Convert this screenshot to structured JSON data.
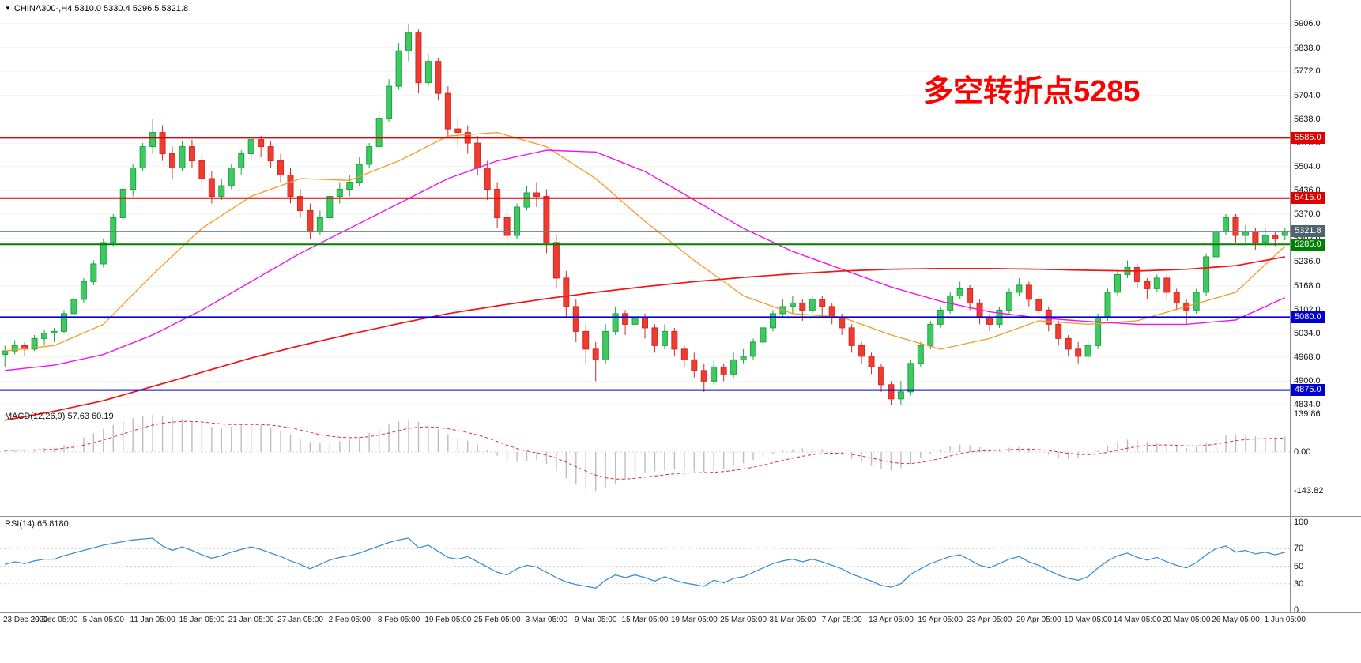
{
  "header": {
    "symbol": "CHINA300-",
    "timeframe": "H4",
    "open": "5310.0",
    "high": "5330.4",
    "low": "5296.5",
    "close": "5321.8",
    "title": "CHINA300-,H4 5310.0 5330.4 5296.5 5321.8"
  },
  "icons": {
    "collapse_triangle": "▼"
  },
  "annotation": {
    "text": "多空转折点5285"
  },
  "colors": {
    "up": "#1fa33e",
    "up_fill": "#3ec962",
    "down": "#cf2b25",
    "down_fill": "#ef3b30",
    "macd_hist": "#bdbdbd",
    "macd_signal": "#e03030",
    "rsi": "#3d8fd4",
    "grid": "#f2f2f2",
    "panel_border": "#8c8c8c",
    "current_line": "#6e7f8c",
    "annotation": "#ff0000"
  },
  "levels": [
    {
      "value": 5585.0,
      "label": "5585.0",
      "color": "#e00000"
    },
    {
      "value": 5415.0,
      "label": "5415.0",
      "color": "#e00000"
    },
    {
      "value": 5285.0,
      "label": "5285.0",
      "color": "#008000"
    },
    {
      "value": 5080.0,
      "label": "5080.0",
      "color": "#0000d0"
    },
    {
      "value": 4875.0,
      "label": "4875.0",
      "color": "#0000d0"
    }
  ],
  "current_price": {
    "value": 5321.8,
    "label": "5321.8",
    "badge_color": "#50626f"
  },
  "chart_data": {
    "type": "candlestick",
    "symbol": "CHINA300-",
    "timeframe": "H4",
    "price_axis": {
      "min": 4834.0,
      "max": 5906.0,
      "ticks": [
        5906.0,
        5838.0,
        5772.0,
        5704.0,
        5638.0,
        5570.0,
        5504.0,
        5436.0,
        5370.0,
        5302.0,
        5236.0,
        5168.0,
        5102.0,
        5034.0,
        4968.0,
        4900.0,
        4834.0
      ]
    },
    "x_labels": [
      "23 Dec 2020",
      "29 Dec 05:00",
      "5 Jan 05:00",
      "11 Jan 05:00",
      "15 Jan 05:00",
      "21 Jan 05:00",
      "27 Jan 05:00",
      "2 Feb 05:00",
      "8 Feb 05:00",
      "19 Feb 05:00",
      "25 Feb 05:00",
      "3 Mar 05:00",
      "9 Mar 05:00",
      "15 Mar 05:00",
      "19 Mar 05:00",
      "25 Mar 05:00",
      "31 Mar 05:00",
      "7 Apr 05:00",
      "13 Apr 05:00",
      "19 Apr 05:00",
      "23 Apr 05:00",
      "29 Apr 05:00",
      "10 May 05:00",
      "14 May 05:00",
      "20 May 05:00",
      "26 May 05:00",
      "1 Jun 05:00"
    ],
    "bars_per_label": 5,
    "candles": [
      [
        4975,
        5000,
        4940,
        4985
      ],
      [
        4985,
        5015,
        4975,
        5000
      ],
      [
        5000,
        5010,
        4970,
        4990
      ],
      [
        4990,
        5030,
        4985,
        5020
      ],
      [
        5020,
        5045,
        5000,
        5035
      ],
      [
        5035,
        5050,
        5010,
        5040
      ],
      [
        5040,
        5100,
        5035,
        5090
      ],
      [
        5090,
        5140,
        5080,
        5130
      ],
      [
        5130,
        5190,
        5120,
        5180
      ],
      [
        5180,
        5240,
        5170,
        5230
      ],
      [
        5230,
        5300,
        5220,
        5290
      ],
      [
        5290,
        5370,
        5280,
        5360
      ],
      [
        5360,
        5450,
        5350,
        5440
      ],
      [
        5440,
        5510,
        5420,
        5500
      ],
      [
        5500,
        5570,
        5490,
        5560
      ],
      [
        5560,
        5638,
        5540,
        5600
      ],
      [
        5600,
        5620,
        5520,
        5540
      ],
      [
        5540,
        5560,
        5470,
        5500
      ],
      [
        5500,
        5575,
        5490,
        5560
      ],
      [
        5560,
        5580,
        5500,
        5520
      ],
      [
        5520,
        5540,
        5440,
        5470
      ],
      [
        5470,
        5490,
        5400,
        5420
      ],
      [
        5420,
        5470,
        5410,
        5450
      ],
      [
        5450,
        5510,
        5440,
        5500
      ],
      [
        5500,
        5550,
        5480,
        5540
      ],
      [
        5540,
        5585,
        5520,
        5580
      ],
      [
        5580,
        5590,
        5530,
        5560
      ],
      [
        5560,
        5575,
        5500,
        5520
      ],
      [
        5520,
        5540,
        5460,
        5480
      ],
      [
        5480,
        5500,
        5400,
        5420
      ],
      [
        5420,
        5440,
        5360,
        5380
      ],
      [
        5380,
        5400,
        5300,
        5320
      ],
      [
        5320,
        5380,
        5310,
        5360
      ],
      [
        5360,
        5430,
        5350,
        5420
      ],
      [
        5420,
        5460,
        5400,
        5440
      ],
      [
        5440,
        5480,
        5420,
        5460
      ],
      [
        5460,
        5530,
        5450,
        5510
      ],
      [
        5510,
        5570,
        5500,
        5560
      ],
      [
        5560,
        5660,
        5550,
        5640
      ],
      [
        5640,
        5750,
        5630,
        5730
      ],
      [
        5730,
        5850,
        5720,
        5830
      ],
      [
        5830,
        5906,
        5800,
        5880
      ],
      [
        5880,
        5890,
        5710,
        5740
      ],
      [
        5740,
        5820,
        5730,
        5800
      ],
      [
        5800,
        5810,
        5690,
        5710
      ],
      [
        5710,
        5730,
        5590,
        5610
      ],
      [
        5610,
        5640,
        5560,
        5600
      ],
      [
        5600,
        5620,
        5540,
        5570
      ],
      [
        5570,
        5590,
        5480,
        5500
      ],
      [
        5500,
        5520,
        5410,
        5440
      ],
      [
        5440,
        5460,
        5330,
        5360
      ],
      [
        5360,
        5380,
        5290,
        5310
      ],
      [
        5310,
        5400,
        5300,
        5390
      ],
      [
        5390,
        5450,
        5380,
        5430
      ],
      [
        5430,
        5460,
        5390,
        5420
      ],
      [
        5420,
        5440,
        5260,
        5290
      ],
      [
        5290,
        5310,
        5160,
        5190
      ],
      [
        5190,
        5210,
        5080,
        5110
      ],
      [
        5110,
        5130,
        5010,
        5040
      ],
      [
        5040,
        5060,
        4950,
        4990
      ],
      [
        4990,
        5010,
        4900,
        4960
      ],
      [
        4960,
        5060,
        4950,
        5040
      ],
      [
        5040,
        5110,
        5030,
        5090
      ],
      [
        5090,
        5100,
        5030,
        5060
      ],
      [
        5060,
        5110,
        5050,
        5080
      ],
      [
        5080,
        5090,
        5020,
        5050
      ],
      [
        5050,
        5060,
        4980,
        5000
      ],
      [
        5000,
        5060,
        4990,
        5040
      ],
      [
        5040,
        5050,
        4970,
        4990
      ],
      [
        4990,
        5000,
        4940,
        4960
      ],
      [
        4960,
        4980,
        4910,
        4930
      ],
      [
        4930,
        4950,
        4870,
        4900
      ],
      [
        4900,
        4960,
        4890,
        4940
      ],
      [
        4940,
        4950,
        4900,
        4920
      ],
      [
        4920,
        4980,
        4910,
        4960
      ],
      [
        4960,
        4990,
        4950,
        4970
      ],
      [
        4970,
        5020,
        4960,
        5010
      ],
      [
        5010,
        5060,
        5000,
        5050
      ],
      [
        5050,
        5100,
        5040,
        5090
      ],
      [
        5090,
        5130,
        5080,
        5110
      ],
      [
        5110,
        5140,
        5090,
        5120
      ],
      [
        5120,
        5130,
        5070,
        5100
      ],
      [
        5100,
        5140,
        5090,
        5130
      ],
      [
        5130,
        5140,
        5080,
        5110
      ],
      [
        5110,
        5120,
        5060,
        5080
      ],
      [
        5080,
        5090,
        5030,
        5050
      ],
      [
        5050,
        5060,
        4980,
        5000
      ],
      [
        5000,
        5010,
        4950,
        4970
      ],
      [
        4970,
        4980,
        4920,
        4940
      ],
      [
        4940,
        4950,
        4870,
        4890
      ],
      [
        4890,
        4900,
        4834,
        4850
      ],
      [
        4850,
        4900,
        4834,
        4870
      ],
      [
        4870,
        4960,
        4860,
        4950
      ],
      [
        4950,
        5010,
        4940,
        5000
      ],
      [
        5000,
        5070,
        4990,
        5060
      ],
      [
        5060,
        5110,
        5050,
        5100
      ],
      [
        5100,
        5150,
        5090,
        5140
      ],
      [
        5140,
        5180,
        5130,
        5160
      ],
      [
        5160,
        5170,
        5100,
        5120
      ],
      [
        5120,
        5130,
        5060,
        5080
      ],
      [
        5080,
        5090,
        5040,
        5060
      ],
      [
        5060,
        5110,
        5050,
        5100
      ],
      [
        5100,
        5160,
        5090,
        5150
      ],
      [
        5150,
        5190,
        5140,
        5170
      ],
      [
        5170,
        5180,
        5110,
        5130
      ],
      [
        5130,
        5140,
        5080,
        5100
      ],
      [
        5100,
        5110,
        5040,
        5060
      ],
      [
        5060,
        5070,
        5000,
        5020
      ],
      [
        5020,
        5030,
        4970,
        4990
      ],
      [
        4990,
        5010,
        4950,
        4970
      ],
      [
        4970,
        5020,
        4960,
        5000
      ],
      [
        5000,
        5090,
        4990,
        5080
      ],
      [
        5080,
        5160,
        5070,
        5150
      ],
      [
        5150,
        5210,
        5140,
        5200
      ],
      [
        5200,
        5240,
        5190,
        5220
      ],
      [
        5220,
        5230,
        5160,
        5180
      ],
      [
        5180,
        5190,
        5130,
        5160
      ],
      [
        5160,
        5200,
        5150,
        5190
      ],
      [
        5190,
        5200,
        5130,
        5150
      ],
      [
        5150,
        5160,
        5100,
        5120
      ],
      [
        5120,
        5130,
        5060,
        5100
      ],
      [
        5100,
        5160,
        5090,
        5150
      ],
      [
        5150,
        5260,
        5140,
        5250
      ],
      [
        5250,
        5330,
        5240,
        5320
      ],
      [
        5320,
        5370,
        5310,
        5360
      ],
      [
        5360,
        5370,
        5290,
        5310
      ],
      [
        5310,
        5340,
        5290,
        5320
      ],
      [
        5320,
        5330,
        5270,
        5290
      ],
      [
        5290,
        5330,
        5280,
        5310
      ],
      [
        5310,
        5320,
        5280,
        5300
      ],
      [
        5310,
        5330.4,
        5296.5,
        5321.8
      ]
    ],
    "moving_averages": [
      {
        "name": "ma-fast-orange",
        "color": "#f59a23",
        "anchor_step": 5,
        "values": [
          4985,
          5000,
          5060,
          5200,
          5330,
          5420,
          5470,
          5465,
          5520,
          5590,
          5600,
          5560,
          5470,
          5350,
          5240,
          5140,
          5090,
          5080,
          5030,
          4990,
          5020,
          5070,
          5060,
          5070,
          5110,
          5150,
          5280
        ]
      },
      {
        "name": "ma-mid-magenta",
        "color": "#f012f0",
        "anchor_step": 5,
        "values": [
          4930,
          4945,
          4975,
          5030,
          5100,
          5180,
          5260,
          5330,
          5400,
          5470,
          5520,
          5550,
          5545,
          5490,
          5410,
          5330,
          5265,
          5215,
          5165,
          5125,
          5095,
          5078,
          5068,
          5060,
          5060,
          5072,
          5135
        ]
      },
      {
        "name": "ma-slow-red",
        "color": "#f01414",
        "anchor_step": 5,
        "values": [
          4790,
          4815,
          4845,
          4885,
          4925,
          4965,
          5000,
          5032,
          5062,
          5090,
          5112,
          5132,
          5150,
          5166,
          5180,
          5192,
          5202,
          5210,
          5215,
          5217,
          5217,
          5215,
          5212,
          5210,
          5215,
          5225,
          5250
        ]
      }
    ],
    "macd": {
      "label": "MACD(12,26,9) 57.63 60.19",
      "macd_value": 57.63,
      "signal_value": 60.19,
      "ticks": [
        139.86,
        0,
        -143.82
      ],
      "hist": [
        6,
        9,
        7,
        11,
        14,
        16,
        26,
        38,
        54,
        70,
        86,
        100,
        114,
        126,
        134,
        140,
        136,
        128,
        122,
        114,
        104,
        94,
        90,
        94,
        100,
        104,
        100,
        92,
        80,
        66,
        50,
        38,
        32,
        34,
        40,
        46,
        56,
        70,
        86,
        102,
        114,
        122,
        112,
        98,
        84,
        66,
        52,
        42,
        28,
        8,
        -14,
        -30,
        -36,
        -34,
        -30,
        -44,
        -70,
        -98,
        -122,
        -138,
        -144,
        -136,
        -120,
        -102,
        -86,
        -76,
        -72,
        -68,
        -66,
        -68,
        -72,
        -74,
        -70,
        -62,
        -52,
        -42,
        -30,
        -18,
        -6,
        4,
        10,
        14,
        14,
        10,
        2,
        -10,
        -24,
        -38,
        -52,
        -64,
        -68,
        -60,
        -44,
        -24,
        -6,
        10,
        22,
        28,
        26,
        18,
        12,
        12,
        16,
        18,
        12,
        2,
        -10,
        -20,
        -26,
        -24,
        -14,
        4,
        22,
        38,
        46,
        44,
        38,
        34,
        28,
        20,
        14,
        20,
        34,
        50,
        62,
        66,
        62,
        58,
        55,
        54,
        57.63
      ]
    },
    "rsi": {
      "label": "RSI(14) 65.8180",
      "value": 65.818,
      "ticks": [
        100,
        70,
        50,
        30,
        0
      ],
      "levels": [
        70,
        50,
        30
      ],
      "values": [
        52,
        55,
        53,
        56,
        58,
        58,
        62,
        65,
        68,
        71,
        74,
        76,
        78,
        80,
        81,
        82,
        73,
        68,
        72,
        68,
        63,
        59,
        62,
        66,
        69,
        72,
        69,
        65,
        61,
        56,
        52,
        47,
        52,
        57,
        60,
        62,
        65,
        69,
        73,
        77,
        80,
        82,
        71,
        74,
        67,
        60,
        58,
        61,
        55,
        49,
        43,
        40,
        47,
        51,
        49,
        43,
        37,
        32,
        29,
        27,
        25,
        34,
        40,
        37,
        40,
        37,
        33,
        38,
        34,
        31,
        29,
        27,
        34,
        31,
        36,
        38,
        43,
        48,
        53,
        56,
        58,
        55,
        58,
        55,
        51,
        47,
        41,
        37,
        33,
        28,
        26,
        30,
        41,
        47,
        53,
        57,
        61,
        63,
        57,
        51,
        48,
        53,
        58,
        61,
        55,
        51,
        45,
        40,
        36,
        34,
        38,
        48,
        56,
        62,
        65,
        60,
        57,
        60,
        55,
        51,
        48,
        54,
        63,
        70,
        73,
        66,
        68,
        64,
        66,
        63,
        65.82
      ]
    }
  }
}
